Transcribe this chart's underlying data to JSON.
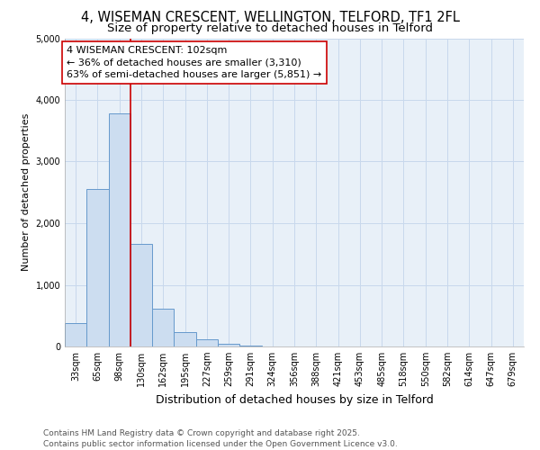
{
  "title": "4, WISEMAN CRESCENT, WELLINGTON, TELFORD, TF1 2FL",
  "subtitle": "Size of property relative to detached houses in Telford",
  "xlabel": "Distribution of detached houses by size in Telford",
  "ylabel": "Number of detached properties",
  "bar_labels": [
    "33sqm",
    "65sqm",
    "98sqm",
    "130sqm",
    "162sqm",
    "195sqm",
    "227sqm",
    "259sqm",
    "291sqm",
    "324sqm",
    "356sqm",
    "388sqm",
    "421sqm",
    "453sqm",
    "485sqm",
    "518sqm",
    "550sqm",
    "582sqm",
    "614sqm",
    "647sqm",
    "679sqm"
  ],
  "bar_values": [
    380,
    2550,
    3780,
    1660,
    620,
    240,
    110,
    45,
    20,
    5,
    0,
    0,
    0,
    0,
    0,
    0,
    0,
    0,
    0,
    0,
    0
  ],
  "bar_color": "#ccddf0",
  "bar_edgecolor": "#6699cc",
  "vline_x": 2.5,
  "vline_color": "#cc0000",
  "ylim": [
    0,
    5000
  ],
  "annotation_text": "4 WISEMAN CRESCENT: 102sqm\n← 36% of detached houses are smaller (3,310)\n63% of semi-detached houses are larger (5,851) →",
  "footer_line1": "Contains HM Land Registry data © Crown copyright and database right 2025.",
  "footer_line2": "Contains public sector information licensed under the Open Government Licence v3.0.",
  "grid_color": "#c8d8ec",
  "background_color": "#e8f0f8",
  "title_fontsize": 10.5,
  "subtitle_fontsize": 9.5,
  "tick_fontsize": 7,
  "ylabel_fontsize": 8,
  "xlabel_fontsize": 9,
  "footer_fontsize": 6.5,
  "annotation_fontsize": 8
}
